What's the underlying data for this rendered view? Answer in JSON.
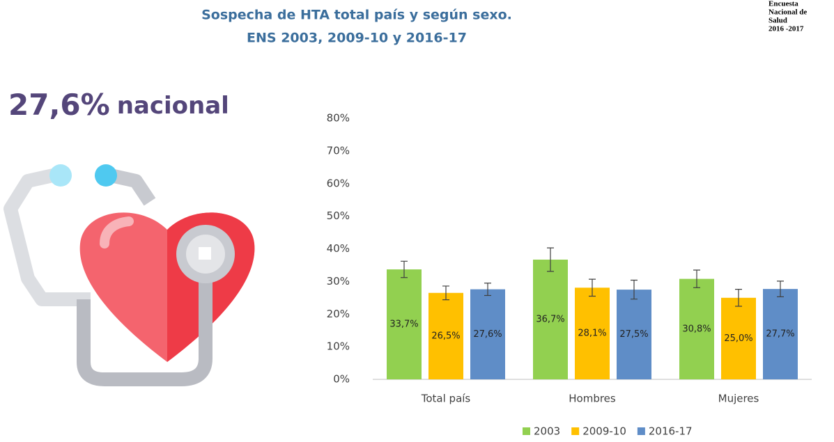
{
  "header": {
    "title": "Sospecha de HTA total país y según sexo.",
    "subtitle": "ENS 2003, 2009-10 y 2016-17",
    "logo": [
      "Encuesta",
      "Nacional de",
      "Salud",
      "2016 -2017"
    ],
    "headline": {
      "figure": "27,6%",
      "text": "nacional"
    }
  },
  "chart_data": {
    "type": "bar",
    "categories": [
      "Total país",
      "Hombres",
      "Mujeres"
    ],
    "series": [
      {
        "name": "2003",
        "color": "#92d050",
        "values": [
          33.7,
          36.7,
          30.8
        ],
        "value_labels": [
          "33,7%",
          "36,7%",
          "30,8%"
        ],
        "errors": [
          2.5,
          3.6,
          2.7
        ]
      },
      {
        "name": "2009-10",
        "color": "#ffc000",
        "values": [
          26.5,
          28.1,
          25.0
        ],
        "value_labels": [
          "26,5%",
          "28,1%",
          "25,0%"
        ],
        "errors": [
          2.1,
          2.6,
          2.6
        ]
      },
      {
        "name": "2016-17",
        "color": "#5f8dc7",
        "values": [
          27.6,
          27.5,
          27.7
        ],
        "value_labels": [
          "27,6%",
          "27,5%",
          "27,7%"
        ],
        "errors": [
          1.9,
          2.9,
          2.4
        ]
      }
    ],
    "ylim": [
      0,
      80
    ],
    "yticks": [
      {
        "value": 0,
        "label": "0%"
      },
      {
        "value": 10,
        "label": "10%"
      },
      {
        "value": 20,
        "label": "20%"
      },
      {
        "value": 30,
        "label": "30%"
      },
      {
        "value": 40,
        "label": "40%"
      },
      {
        "value": 50,
        "label": "50%"
      },
      {
        "value": 60,
        "label": "60%"
      },
      {
        "value": 70,
        "label": "70%"
      },
      {
        "value": 80,
        "label": "80%"
      }
    ],
    "grid": false,
    "legend": "bottom"
  }
}
